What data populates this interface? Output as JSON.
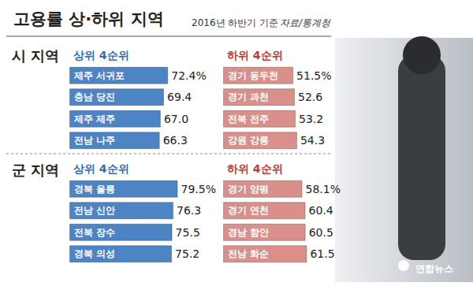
{
  "title": "고용률 상·하위 지역",
  "subtitle": "2016년 하반기 기준",
  "source": "자료/통계청",
  "logo": "연합뉴스",
  "sections": [
    "시 지역",
    "군 지역"
  ],
  "chart_data": [
    {
      "type": "bar",
      "orientation": "horizontal",
      "title": "상위 4순위",
      "categories": [
        "제주 서귀포",
        "충남 당진",
        "제주 제주",
        "전남 나주"
      ],
      "values": [
        72.4,
        69.4,
        67.0,
        66.3
      ],
      "value_labels": [
        "72.4%",
        "69.4",
        "67.0",
        "66.3"
      ],
      "color": "#4d84c4",
      "xlim": [
        0,
        100
      ],
      "tick_labels": "y",
      "data_labels": true,
      "grid": false
    },
    {
      "type": "bar",
      "orientation": "horizontal",
      "title": "하위 4순위",
      "categories": [
        "경기 동두천",
        "경기 과천",
        "전북 전주",
        "강원 강릉"
      ],
      "values": [
        51.5,
        52.6,
        53.2,
        54.3
      ],
      "value_labels": [
        "51.5%",
        "52.6",
        "53.2",
        "54.3"
      ],
      "color": "#d9908a",
      "xlim": [
        0,
        100
      ],
      "tick_labels": "y",
      "data_labels": true,
      "grid": false
    },
    {
      "type": "bar",
      "orientation": "horizontal",
      "title": "상위 4순위",
      "categories": [
        "경북 울릉",
        "전남 신안",
        "전북 장수",
        "경북 의성"
      ],
      "values": [
        79.5,
        76.3,
        75.5,
        75.2
      ],
      "value_labels": [
        "79.5%",
        "76.3",
        "75.5",
        "75.2"
      ],
      "color": "#4d84c4",
      "xlim": [
        0,
        100
      ],
      "tick_labels": "y",
      "data_labels": true,
      "grid": false
    },
    {
      "type": "bar",
      "orientation": "horizontal",
      "title": "하위 4순위",
      "categories": [
        "경기 양평",
        "경기 연천",
        "경남 함안",
        "전남 화순"
      ],
      "values": [
        58.1,
        60.4,
        60.5,
        61.5
      ],
      "value_labels": [
        "58.1%",
        "60.4",
        "60.5",
        "61.5"
      ],
      "color": "#d9908a",
      "xlim": [
        0,
        100
      ],
      "tick_labels": "y",
      "data_labels": true,
      "grid": false
    }
  ]
}
